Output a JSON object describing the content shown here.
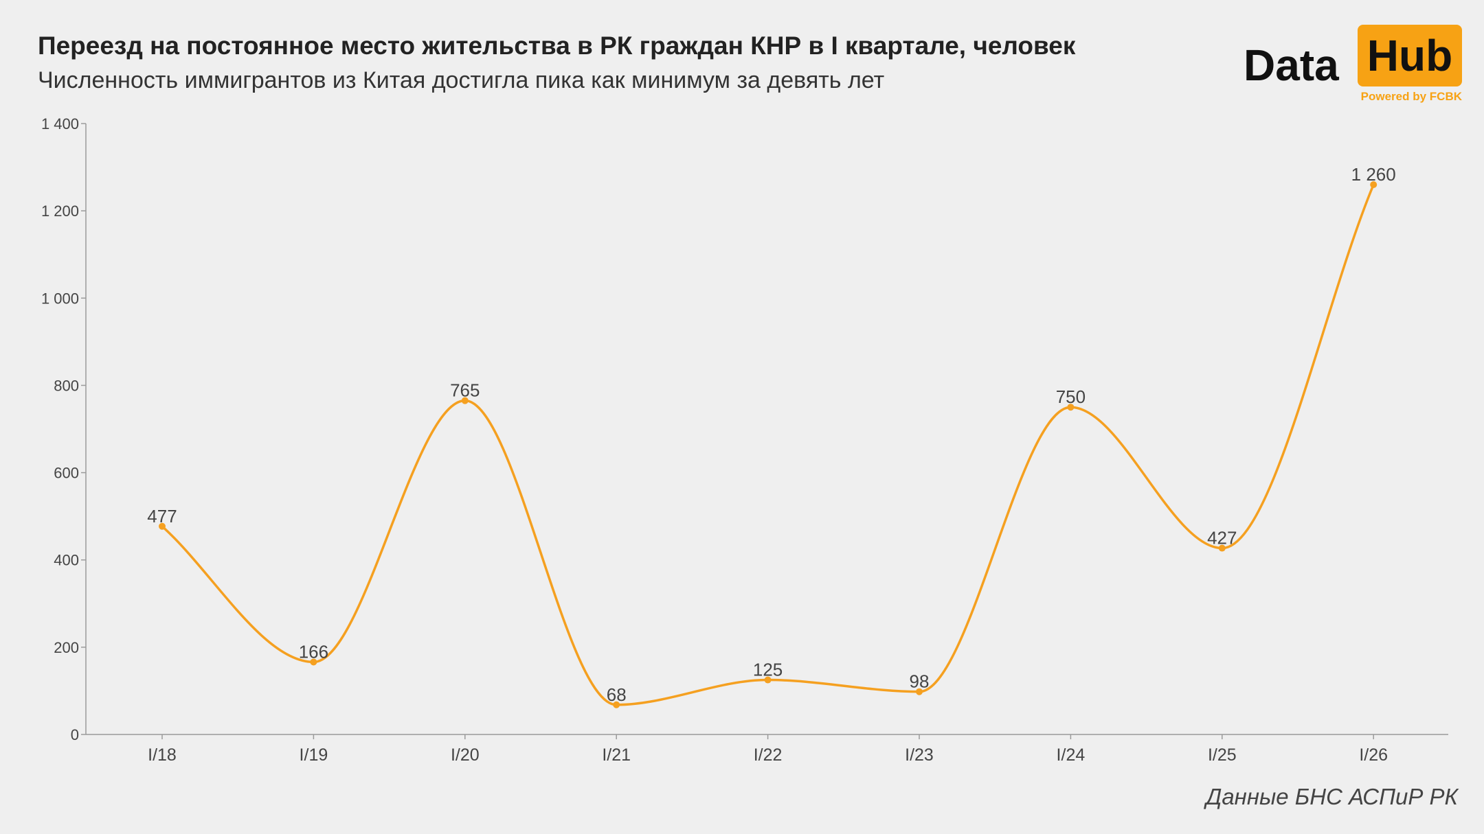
{
  "header": {
    "title": "Переезд на постоянное место жительства в РК граждан КНР в I квартале, человек",
    "subtitle": "Численность иммигрантов из Китая достигла пика как минимум за девять лет"
  },
  "logo": {
    "data_text": "Data",
    "hub_text": "Hub",
    "powered": "Powered by FCBK",
    "accent_color": "#f7a214"
  },
  "footer": {
    "source": "Данные БНС АСПиР РК"
  },
  "chart_data": {
    "type": "line",
    "title": "Переезд на постоянное место жительства в РК граждан КНР в I квартале, человек",
    "subtitle": "Численность иммигрантов из Китая достигла пика как минимум за девять лет",
    "xlabel": "",
    "ylabel": "",
    "categories": [
      "I/18",
      "I/19",
      "I/20",
      "I/21",
      "I/22",
      "I/23",
      "I/24",
      "I/25",
      "I/26"
    ],
    "series": [
      {
        "values": [
          477,
          166,
          765,
          68,
          125,
          98,
          750,
          427,
          1260
        ],
        "data_labels": [
          "477",
          "166",
          "765",
          "68",
          "125",
          "98",
          "750",
          "427",
          "1 260"
        ],
        "color": "#f5a020"
      }
    ],
    "ylim": [
      0,
      1400
    ],
    "yticks": [
      0,
      200,
      400,
      600,
      800,
      1000,
      1200,
      1400
    ],
    "ytick_labels": [
      "0",
      "200",
      "400",
      "600",
      "800",
      "1 000",
      "1 200",
      "1 400"
    ],
    "grid": false,
    "smooth": true,
    "legend": "none"
  }
}
